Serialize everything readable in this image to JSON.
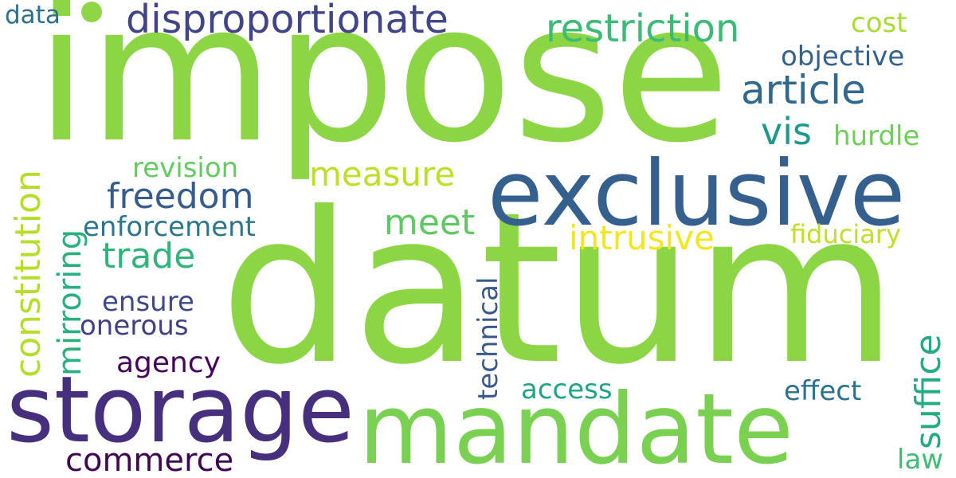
{
  "words": [
    {
      "key": "impose",
      "text": "impose",
      "color": "#8cd646"
    },
    {
      "key": "datum",
      "text": "datum",
      "color": "#8cd646"
    },
    {
      "key": "exclusive",
      "text": "exclusive",
      "color": "#355f8d"
    },
    {
      "key": "storage",
      "text": "storage",
      "color": "#46307e"
    },
    {
      "key": "mandate",
      "text": "mandate",
      "color": "#7ad151"
    },
    {
      "key": "disproportionate",
      "text": "disproportionate",
      "color": "#414487"
    },
    {
      "key": "restriction",
      "text": "restriction",
      "color": "#3bbb75"
    },
    {
      "key": "article",
      "text": "article",
      "color": "#31688e"
    },
    {
      "key": "constitution",
      "text": "constitution",
      "color": "#b5de2b"
    },
    {
      "key": "mirroring",
      "text": "mirroring",
      "color": "#2ab07f"
    },
    {
      "key": "freedom",
      "text": "freedom",
      "color": "#365c8d"
    },
    {
      "key": "trade",
      "text": "trade",
      "color": "#2fb47c"
    },
    {
      "key": "measure",
      "text": "measure",
      "color": "#bddf26"
    },
    {
      "key": "meet",
      "text": "meet",
      "color": "#5ec962"
    },
    {
      "key": "intrusive",
      "text": "intrusive",
      "color": "#f4e61e"
    },
    {
      "key": "suffice",
      "text": "suffice",
      "color": "#25ab82"
    },
    {
      "key": "commerce",
      "text": "commerce",
      "color": "#3e0751"
    },
    {
      "key": "technical",
      "text": "technical",
      "color": "#38598c"
    },
    {
      "key": "data",
      "text": "data",
      "color": "#2d708e"
    },
    {
      "key": "cost",
      "text": "cost",
      "color": "#a8db34"
    },
    {
      "key": "objective",
      "text": "objective",
      "color": "#33638d"
    },
    {
      "key": "vis",
      "text": "vis",
      "color": "#1f9a8a"
    },
    {
      "key": "hurdle",
      "text": "hurdle",
      "color": "#6ece58"
    },
    {
      "key": "revision",
      "text": "revision",
      "color": "#63cb5f"
    },
    {
      "key": "enforcement",
      "text": "enforcement",
      "color": "#2a768e"
    },
    {
      "key": "fiduciary",
      "text": "fiduciary",
      "color": "#c0df25"
    },
    {
      "key": "ensure",
      "text": "ensure",
      "color": "#3f4889"
    },
    {
      "key": "onerous",
      "text": "onerous",
      "color": "#423f85"
    },
    {
      "key": "agency",
      "text": "agency",
      "color": "#450559"
    },
    {
      "key": "access",
      "text": "access",
      "color": "#20a486"
    },
    {
      "key": "effect",
      "text": "effect",
      "color": "#2c718e"
    },
    {
      "key": "law",
      "text": "law",
      "color": "#3dbc74"
    }
  ]
}
